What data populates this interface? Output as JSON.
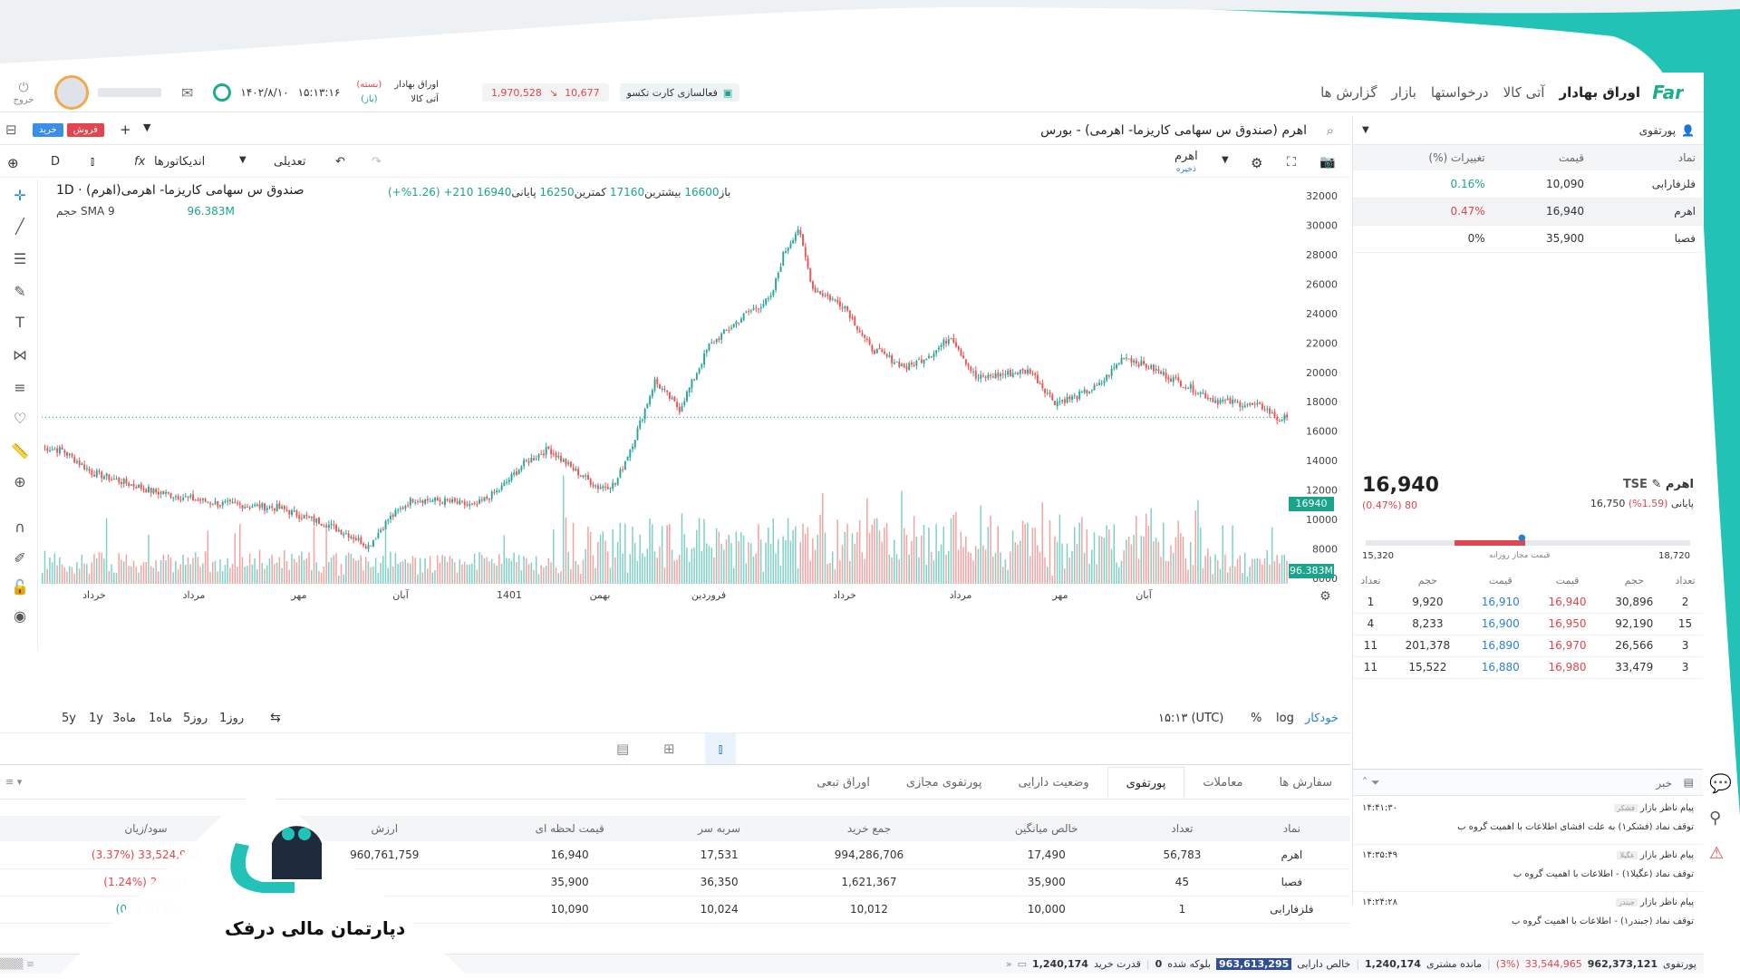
{
  "colors": {
    "up": "#26a69a",
    "down": "#ef5350",
    "accent": "#1cae8a",
    "teal_deco": "#22c3b6",
    "blue": "#2a7fd4",
    "red": "#e0454e"
  },
  "header": {
    "logo_text": "Far",
    "nav": [
      "اوراق بهادار",
      "آتی کالا",
      "درخواستها",
      "بازار",
      "گزارش ها"
    ],
    "activation_label": "فعالسازی کارت تکسو",
    "index_value": "1,970,528",
    "index_change": "10,677",
    "market1_label": "اوراق بهادار",
    "market1_status": "(بسته)",
    "market2_label": "آتی کالا",
    "market2_status": "(باز)",
    "time": "۱۵:۱۳:۱۶",
    "date": "۱۴۰۲/۸/۱۰",
    "logout_label": "خروج"
  },
  "symbol_bar": {
    "title": "اهرم (صندوق س سهامی کاریزما- اهرمی) - بورس",
    "buy_label": "خرید",
    "sell_label": "فروش"
  },
  "chart_toolbar": {
    "interval": "D",
    "indicators_label": "اندیکاتورها",
    "adjust_label": "تعدیلی",
    "layout_name": "اهرم",
    "layout_sub": "ذخیره"
  },
  "chart_legend": {
    "title": "صندوق س سهامی کاریزما- اهرمی(اهرم) · 1D",
    "open_label": "باز",
    "open": "16600",
    "high_label": "بیشترین",
    "high": "17160",
    "low_label": "کمترین",
    "low": "16250",
    "close_label": "پایانی",
    "close": "16940",
    "change": "210+ (1.26%+)",
    "volume_label": "حجم",
    "sma_label": "SMA 9",
    "volume_value": "96.383M",
    "last_price_tag": "16940",
    "volume_tag": "96.383M"
  },
  "chart_bottom": {
    "ranges": [
      "5y",
      "1y",
      "3ماه",
      "1ماه",
      "5روز",
      "1روز"
    ],
    "time_utc": "۱۵:۱۳ (UTC)",
    "percent": "%",
    "log": "log",
    "auto": "خودکار"
  },
  "chart_data": {
    "type": "candlestick",
    "y_ticks": [
      6000,
      8000,
      10000,
      12000,
      14000,
      16000,
      18000,
      20000,
      22000,
      24000,
      26000,
      28000,
      30000,
      32000
    ],
    "ylim": [
      6000,
      32000
    ],
    "x_labels": [
      "خرداد",
      "مرداد",
      "مهر",
      "آبان",
      "1401",
      "بهمن",
      "فروردین",
      "خرداد",
      "مرداد",
      "مهر",
      "آبان"
    ],
    "keypoints": [
      [
        0,
        14900
      ],
      [
        8,
        14700
      ],
      [
        20,
        13200
      ],
      [
        45,
        11900
      ],
      [
        70,
        11100
      ],
      [
        95,
        10800
      ],
      [
        115,
        9700
      ],
      [
        125,
        8900
      ],
      [
        132,
        8200
      ],
      [
        140,
        10000
      ],
      [
        150,
        11400
      ],
      [
        165,
        11200
      ],
      [
        175,
        10900
      ],
      [
        185,
        12000
      ],
      [
        195,
        13800
      ],
      [
        205,
        14800
      ],
      [
        215,
        13400
      ],
      [
        225,
        12200
      ],
      [
        232,
        12400
      ],
      [
        240,
        15600
      ],
      [
        248,
        19400
      ],
      [
        258,
        17500
      ],
      [
        270,
        21800
      ],
      [
        285,
        24000
      ],
      [
        295,
        25000
      ],
      [
        300,
        28000
      ],
      [
        306,
        29800
      ],
      [
        312,
        25700
      ],
      [
        325,
        24500
      ],
      [
        335,
        21700
      ],
      [
        350,
        20300
      ],
      [
        362,
        21500
      ],
      [
        368,
        22500
      ],
      [
        378,
        19600
      ],
      [
        390,
        19900
      ],
      [
        400,
        20100
      ],
      [
        410,
        18000
      ],
      [
        418,
        18300
      ],
      [
        428,
        19100
      ],
      [
        438,
        21100
      ],
      [
        450,
        20200
      ],
      [
        462,
        19200
      ],
      [
        475,
        18100
      ],
      [
        485,
        17900
      ],
      [
        495,
        17600
      ],
      [
        500,
        16800
      ],
      [
        504,
        16940
      ]
    ],
    "last_price": 16940
  },
  "bottom_panel": {
    "tabs": [
      "سفارش ها",
      "معاملات",
      "پورتفوی",
      "وضعیت دارایی",
      "پورتفوی مجازی",
      "اوراق تبعی"
    ],
    "active_tab": "پورتفوی",
    "columns": [
      "نماد",
      "تعداد",
      "خالص میانگین",
      "جمع خرید",
      "سربه سر",
      "قیمت لحظه ای",
      "ارزش",
      "سود/زیان"
    ],
    "rows": [
      [
        "اهرم",
        "56,783",
        "17,490",
        "994,286,706",
        "17,531",
        "16,940",
        "960,761,759",
        "33,524,947 (3.37%)"
      ],
      [
        "فصبا",
        "45",
        "35,900",
        "1,621,367",
        "36,350",
        "35,900",
        "",
        "20,084 (1.24%)"
      ],
      [
        "فلزفارابی",
        "1",
        "10,000",
        "10,012",
        "10,024",
        "10,090",
        "",
        "66 (0.66%)"
      ]
    ]
  },
  "watchlist": {
    "title": "پورتفوی",
    "columns": [
      "نماد",
      "قیمت",
      "تغییرات (%)"
    ],
    "rows": [
      [
        "فلزفارابی",
        "10,090",
        "0.16%"
      ],
      [
        "اهرم",
        "16,940",
        "0.47%"
      ],
      [
        "فصبا",
        "35,900",
        "0%"
      ]
    ]
  },
  "symbol_info": {
    "name": "اهرم",
    "market": "TSE",
    "last_price": "16,940",
    "change": "80 (0.47%)",
    "close_label": "پایانی",
    "close_price": "16,750",
    "close_change": "(1.59%)",
    "range_min": "15,320",
    "range_max": "18,720",
    "range_label": "قیمت مجاز روزانه"
  },
  "order_book": {
    "columns": [
      "تعداد",
      "حجم",
      "قیمت",
      "قیمت",
      "حجم",
      "تعداد"
    ],
    "rows": [
      [
        "1",
        "9,920",
        "16,910",
        "16,940",
        "30,896",
        "2"
      ],
      [
        "4",
        "8,233",
        "16,900",
        "16,950",
        "92,190",
        "15"
      ],
      [
        "11",
        "201,378",
        "16,890",
        "16,970",
        "26,566",
        "3"
      ],
      [
        "11",
        "15,522",
        "16,880",
        "16,980",
        "33,479",
        "3"
      ]
    ]
  },
  "news": {
    "title": "خبر",
    "items": [
      {
        "source": "پیام ناظر بازار",
        "tag": "فشکر",
        "time": "۱۴:۴۱:۳۰",
        "text": "توقف نماد (فشکر۱) به علت افشای اطلاعات با اهمیت گروه ب"
      },
      {
        "source": "پیام ناظر بازار",
        "tag": "عگیلا",
        "time": "۱۴:۳۵:۴۹",
        "text": "توقف نماد (عگیلا۱) - اطلاعات با اهمیت گروه ب"
      },
      {
        "source": "پیام ناظر بازار",
        "tag": "جبندر",
        "time": "۱۴:۲۴:۲۸",
        "text": "توقف نماد (جبندر۱) - اطلاعات با اهمیت گروه ب"
      }
    ]
  },
  "status_bar": {
    "portfolio_label": "پورتفوی",
    "portfolio_value": "962,373,121",
    "portfolio_pnl": "33,544,965",
    "portfolio_pct": "(3%)",
    "customer_balance_label": "مانده مشتری",
    "customer_balance": "1,240,174",
    "net_assets_label": "خالص دارایی",
    "net_assets": "963,613,295",
    "blocked_label": "بلوکه شده",
    "blocked": "0",
    "buy_power_label": "قدرت خرید",
    "buy_power": "1,240,174"
  },
  "watermark": {
    "brand": "دپارتمان مالی درفک"
  }
}
